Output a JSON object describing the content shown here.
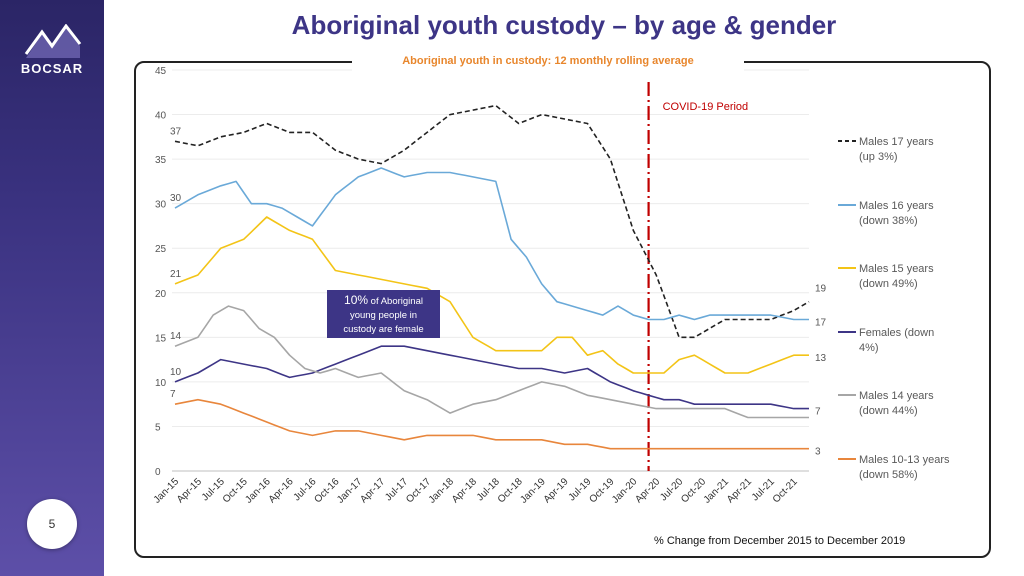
{
  "sidebar": {
    "logo_text": "BOCSAR",
    "page_number": "5"
  },
  "title": "Aboriginal youth custody – by age & gender",
  "subtitle": "Aboriginal youth in custody: 12 monthly rolling average",
  "footnote": "% Change from December 2015 to December 2019",
  "callout": {
    "pct": "10%",
    "text1": " of Aboriginal",
    "text2": "young people in",
    "text3": "custody are female"
  },
  "colors": {
    "males17": "#222222",
    "males16": "#6aa9d8",
    "males15": "#f3c417",
    "females": "#3d3586",
    "males14": "#a6a6a6",
    "males1013": "#e8863c",
    "covid": "#c00000",
    "brand": "#3d3586"
  },
  "chart_data": {
    "type": "line",
    "title": "Aboriginal youth in custody: 12 monthly rolling average",
    "ylim": [
      0,
      45
    ],
    "yticks": [
      0,
      5,
      10,
      15,
      20,
      25,
      30,
      35,
      40,
      45
    ],
    "x_tick_labels": [
      "Jan-15",
      "Apr-15",
      "Jul-15",
      "Oct-15",
      "Jan-16",
      "Apr-16",
      "Jul-16",
      "Oct-16",
      "Jan-17",
      "Apr-17",
      "Jul-17",
      "Oct-17",
      "Jan-18",
      "Apr-18",
      "Jul-18",
      "Oct-18",
      "Jan-19",
      "Apr-19",
      "Jul-19",
      "Oct-19",
      "Jan-20",
      "Apr-20",
      "Jul-20",
      "Oct-20",
      "Jan-21",
      "Apr-21",
      "Jul-21",
      "Oct-21"
    ],
    "covid_label": "COVID-19 Period",
    "covid_month_index": 62,
    "n_months": 84,
    "series": [
      {
        "key": "males17",
        "name": "Males 17 years",
        "change": "(up 3%)",
        "dashed": true,
        "start_label": "37",
        "end_label": "19",
        "anchors": [
          [
            0,
            37
          ],
          [
            3,
            36.5
          ],
          [
            6,
            37.5
          ],
          [
            9,
            38
          ],
          [
            12,
            39
          ],
          [
            15,
            38
          ],
          [
            18,
            38
          ],
          [
            21,
            36
          ],
          [
            24,
            35
          ],
          [
            27,
            34.5
          ],
          [
            30,
            36
          ],
          [
            33,
            38
          ],
          [
            36,
            40
          ],
          [
            39,
            40.5
          ],
          [
            42,
            41
          ],
          [
            45,
            39
          ],
          [
            48,
            40
          ],
          [
            51,
            39.5
          ],
          [
            54,
            39
          ],
          [
            57,
            35
          ],
          [
            60,
            27
          ],
          [
            63,
            22
          ],
          [
            66,
            15
          ],
          [
            68,
            15
          ],
          [
            70,
            16
          ],
          [
            72,
            17
          ],
          [
            75,
            17
          ],
          [
            78,
            17
          ],
          [
            81,
            18
          ],
          [
            83,
            19
          ]
        ]
      },
      {
        "key": "males16",
        "name": "Males 16 years",
        "change": "(down 38%)",
        "dashed": false,
        "start_label": "30",
        "end_label": "17",
        "anchors": [
          [
            0,
            29.5
          ],
          [
            3,
            31
          ],
          [
            6,
            32
          ],
          [
            8,
            32.5
          ],
          [
            10,
            30
          ],
          [
            12,
            30
          ],
          [
            14,
            29.5
          ],
          [
            16,
            28.5
          ],
          [
            18,
            27.5
          ],
          [
            21,
            31
          ],
          [
            24,
            33
          ],
          [
            27,
            34
          ],
          [
            30,
            33
          ],
          [
            33,
            33.5
          ],
          [
            36,
            33.5
          ],
          [
            39,
            33
          ],
          [
            42,
            32.5
          ],
          [
            44,
            26
          ],
          [
            46,
            24
          ],
          [
            48,
            21
          ],
          [
            50,
            19
          ],
          [
            52,
            18.5
          ],
          [
            54,
            18
          ],
          [
            56,
            17.5
          ],
          [
            58,
            18.5
          ],
          [
            60,
            17.5
          ],
          [
            62,
            17
          ],
          [
            64,
            17
          ],
          [
            66,
            17.5
          ],
          [
            68,
            17
          ],
          [
            70,
            17.5
          ],
          [
            72,
            17.5
          ],
          [
            75,
            17.5
          ],
          [
            78,
            17.5
          ],
          [
            81,
            17
          ],
          [
            83,
            17
          ]
        ]
      },
      {
        "key": "males15",
        "name": "Males 15 years",
        "change": "(down 49%)",
        "dashed": false,
        "start_label": "21",
        "end_label": "13",
        "anchors": [
          [
            0,
            21
          ],
          [
            3,
            22
          ],
          [
            6,
            25
          ],
          [
            9,
            26
          ],
          [
            12,
            28.5
          ],
          [
            15,
            27
          ],
          [
            18,
            26
          ],
          [
            21,
            22.5
          ],
          [
            24,
            22
          ],
          [
            27,
            21.5
          ],
          [
            30,
            21
          ],
          [
            33,
            20.5
          ],
          [
            36,
            19
          ],
          [
            39,
            15
          ],
          [
            42,
            13.5
          ],
          [
            45,
            13.5
          ],
          [
            48,
            13.5
          ],
          [
            50,
            15
          ],
          [
            52,
            15
          ],
          [
            54,
            13
          ],
          [
            56,
            13.5
          ],
          [
            58,
            12
          ],
          [
            60,
            11
          ],
          [
            62,
            11
          ],
          [
            64,
            11
          ],
          [
            66,
            12.5
          ],
          [
            68,
            13
          ],
          [
            70,
            12
          ],
          [
            72,
            11
          ],
          [
            75,
            11
          ],
          [
            78,
            12
          ],
          [
            81,
            13
          ],
          [
            83,
            13
          ]
        ]
      },
      {
        "key": "females",
        "name": "Females (down 4%)",
        "change": "",
        "dashed": false,
        "start_label": "10",
        "end_label": "7",
        "anchors": [
          [
            0,
            10
          ],
          [
            3,
            11
          ],
          [
            6,
            12.5
          ],
          [
            9,
            12
          ],
          [
            12,
            11.5
          ],
          [
            15,
            10.5
          ],
          [
            18,
            11
          ],
          [
            21,
            12
          ],
          [
            24,
            13
          ],
          [
            27,
            14
          ],
          [
            30,
            14
          ],
          [
            33,
            13.5
          ],
          [
            36,
            13
          ],
          [
            39,
            12.5
          ],
          [
            42,
            12
          ],
          [
            45,
            11.5
          ],
          [
            48,
            11.5
          ],
          [
            51,
            11
          ],
          [
            54,
            11.5
          ],
          [
            57,
            10
          ],
          [
            60,
            9
          ],
          [
            62,
            8.5
          ],
          [
            64,
            8
          ],
          [
            66,
            8
          ],
          [
            68,
            7.5
          ],
          [
            70,
            7.5
          ],
          [
            72,
            7.5
          ],
          [
            75,
            7.5
          ],
          [
            78,
            7.5
          ],
          [
            81,
            7
          ],
          [
            83,
            7
          ]
        ]
      },
      {
        "key": "males14",
        "name": "Males 14 years",
        "change": "(down 44%)",
        "dashed": false,
        "start_label": "14",
        "end_label": "",
        "anchors": [
          [
            0,
            14
          ],
          [
            3,
            15
          ],
          [
            5,
            17.5
          ],
          [
            7,
            18.5
          ],
          [
            9,
            18
          ],
          [
            11,
            16
          ],
          [
            13,
            15
          ],
          [
            15,
            13
          ],
          [
            17,
            11.5
          ],
          [
            19,
            11
          ],
          [
            21,
            11.5
          ],
          [
            24,
            10.5
          ],
          [
            27,
            11
          ],
          [
            30,
            9
          ],
          [
            33,
            8
          ],
          [
            36,
            6.5
          ],
          [
            39,
            7.5
          ],
          [
            42,
            8
          ],
          [
            45,
            9
          ],
          [
            48,
            10
          ],
          [
            51,
            9.5
          ],
          [
            54,
            8.5
          ],
          [
            57,
            8
          ],
          [
            60,
            7.5
          ],
          [
            63,
            7
          ],
          [
            66,
            7
          ],
          [
            68,
            7
          ],
          [
            70,
            7
          ],
          [
            72,
            7
          ],
          [
            75,
            6
          ],
          [
            78,
            6
          ],
          [
            81,
            6
          ],
          [
            83,
            6
          ]
        ]
      },
      {
        "key": "males1013",
        "name": "Males 10-13 years",
        "change": "(down 58%)",
        "dashed": false,
        "start_label": "7",
        "end_label": "3",
        "anchors": [
          [
            0,
            7.5
          ],
          [
            3,
            8
          ],
          [
            6,
            7.5
          ],
          [
            9,
            6.5
          ],
          [
            12,
            5.5
          ],
          [
            15,
            4.5
          ],
          [
            18,
            4
          ],
          [
            21,
            4.5
          ],
          [
            24,
            4.5
          ],
          [
            27,
            4
          ],
          [
            30,
            3.5
          ],
          [
            33,
            4
          ],
          [
            36,
            4
          ],
          [
            39,
            4
          ],
          [
            42,
            3.5
          ],
          [
            45,
            3.5
          ],
          [
            48,
            3.5
          ],
          [
            51,
            3
          ],
          [
            54,
            3
          ],
          [
            57,
            2.5
          ],
          [
            60,
            2.5
          ],
          [
            62,
            2.5
          ],
          [
            64,
            2.5
          ],
          [
            66,
            2.5
          ],
          [
            68,
            2.5
          ],
          [
            70,
            2.5
          ],
          [
            72,
            2.5
          ],
          [
            75,
            2.5
          ],
          [
            78,
            2.5
          ],
          [
            81,
            2.5
          ],
          [
            83,
            2.5
          ]
        ]
      }
    ]
  }
}
